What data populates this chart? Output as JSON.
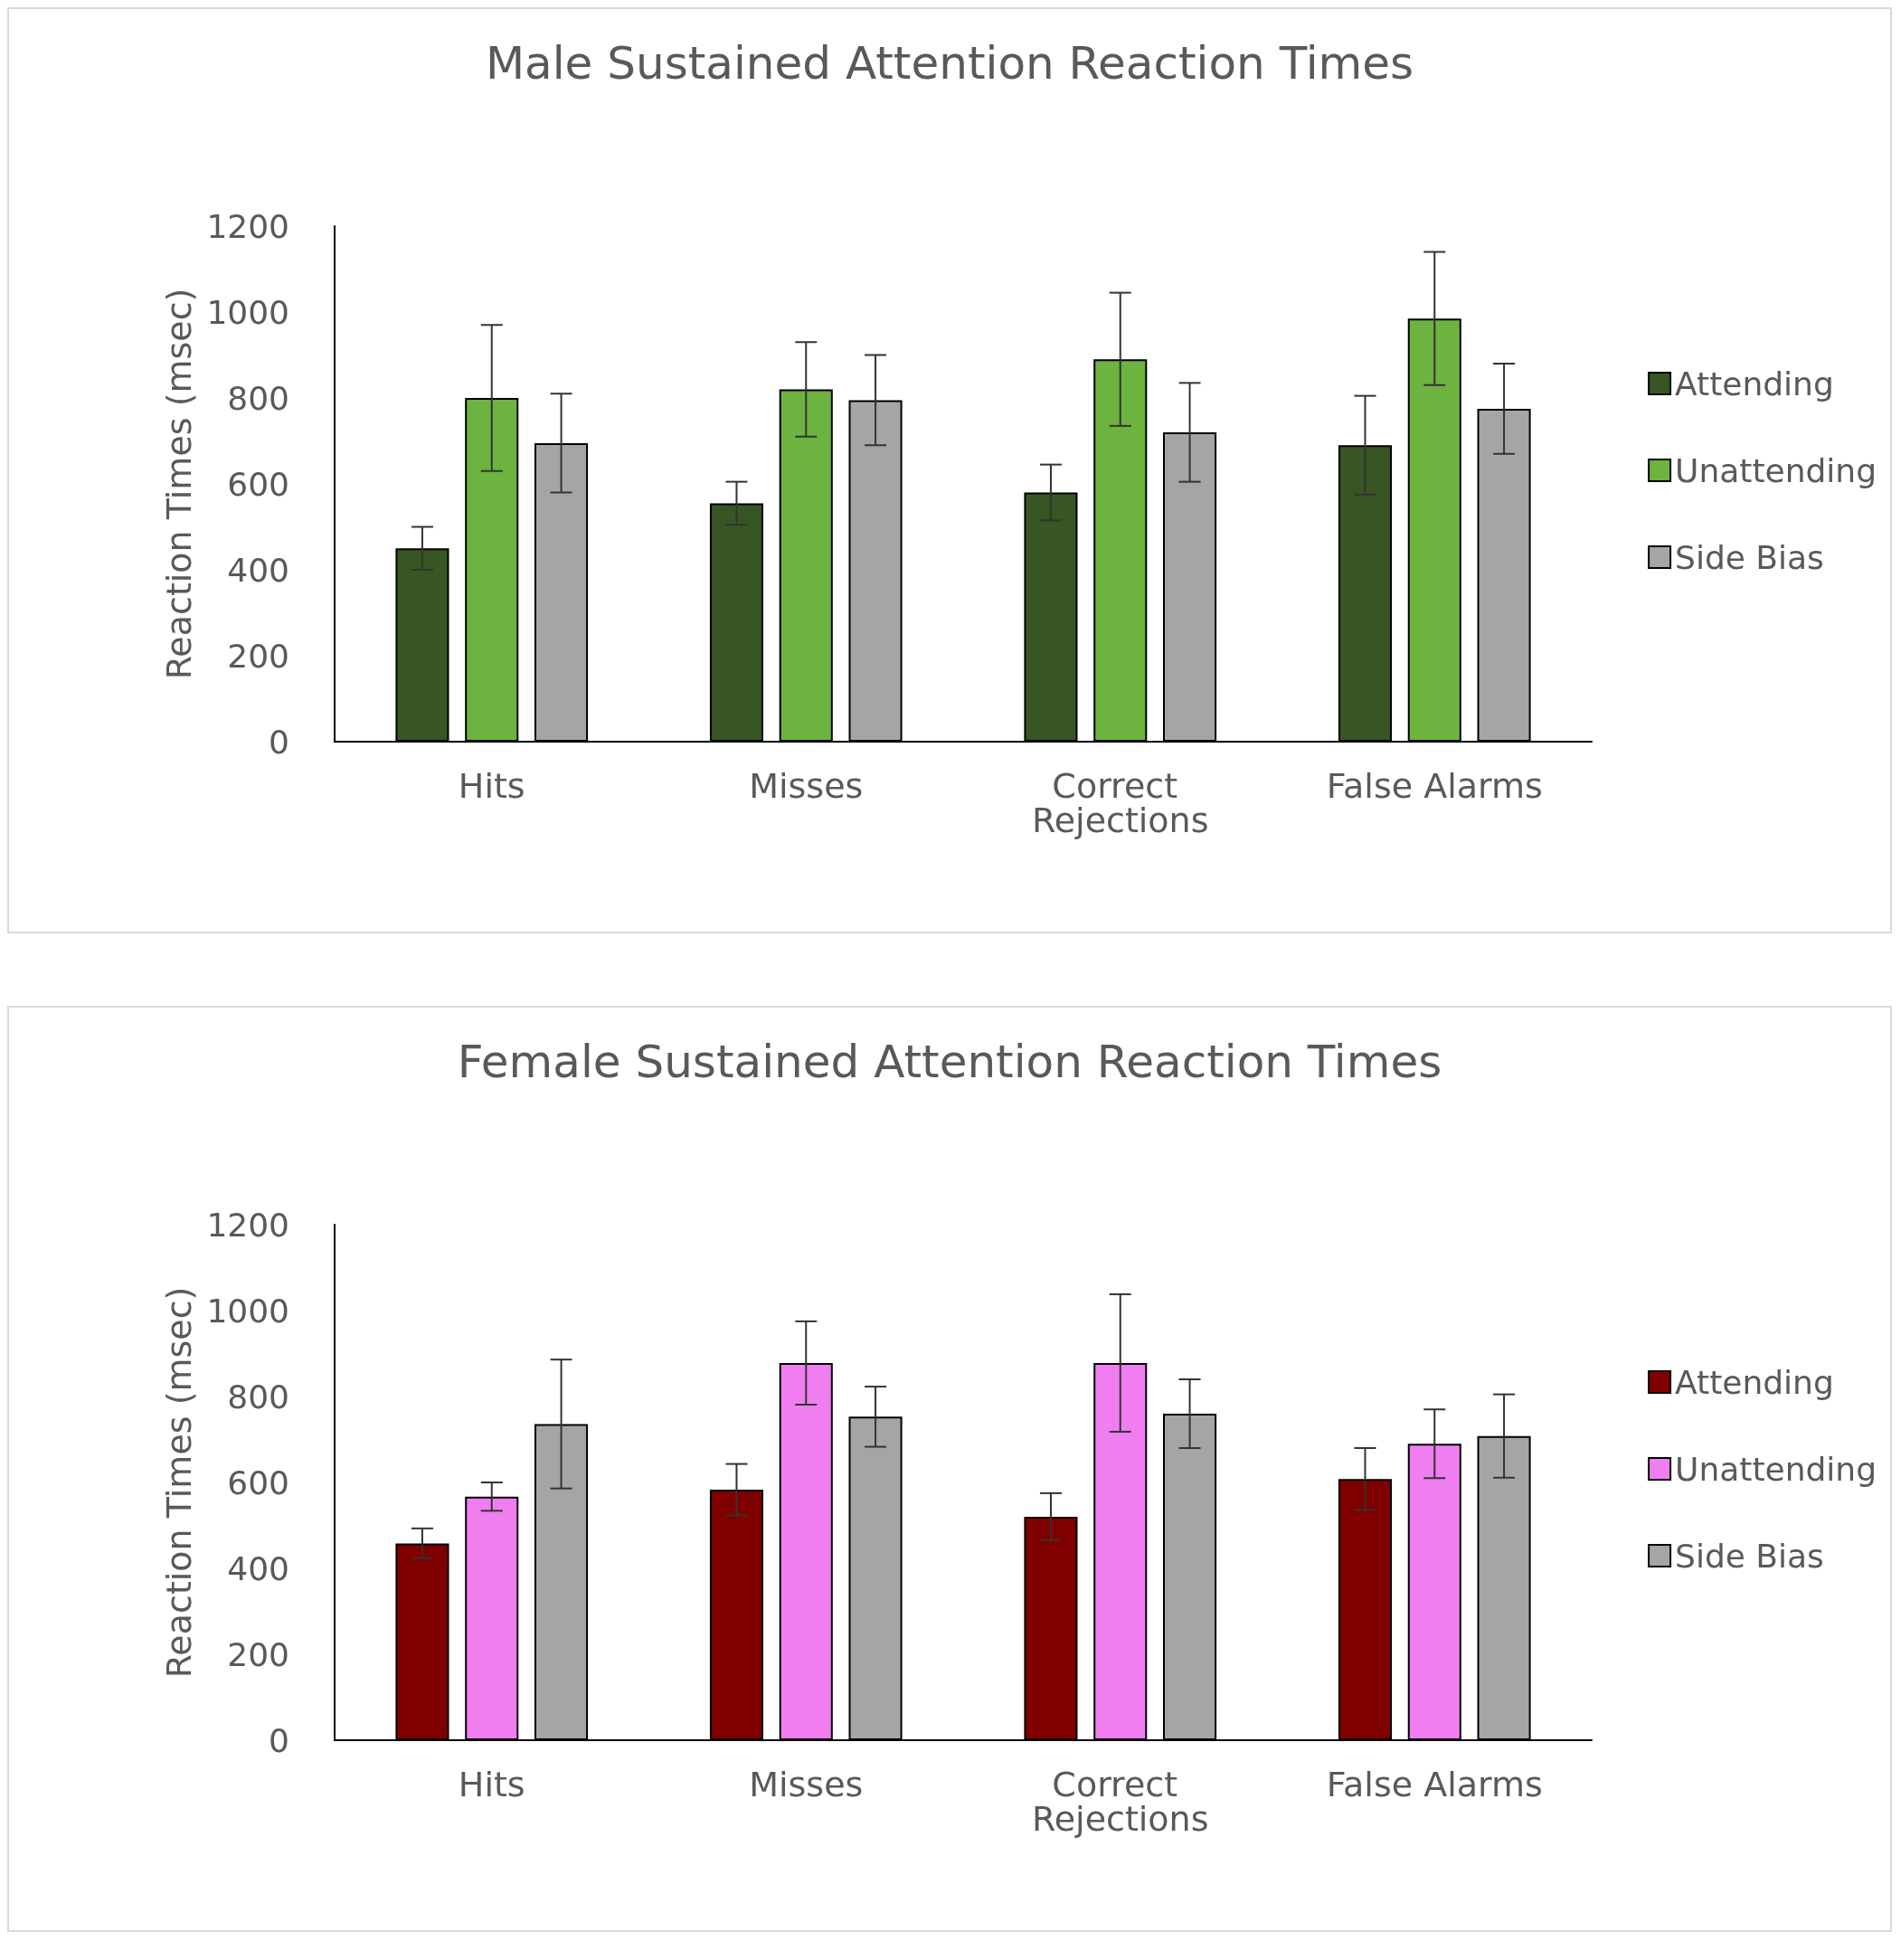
{
  "chart_data": [
    {
      "type": "bar",
      "title": "Male Sustained Attention Reaction Times",
      "ylabel": "Reaction Times (msec)",
      "categories": [
        "Hits",
        "Misses",
        "Correct Rejections",
        "False Alarms"
      ],
      "ylim": [
        0,
        1200
      ],
      "yticks": [
        0,
        200,
        400,
        600,
        800,
        1000,
        1200
      ],
      "grid": false,
      "legend": "right",
      "series": [
        {
          "name": "Attending",
          "color": "#375623",
          "values": [
            450,
            555,
            580,
            690
          ],
          "errors": [
            50,
            50,
            65,
            115
          ]
        },
        {
          "name": "Unattending",
          "color": "#6db33f",
          "values": [
            800,
            820,
            890,
            985
          ],
          "errors": [
            170,
            110,
            155,
            155
          ]
        },
        {
          "name": "Side Bias",
          "color": "#a5a5a5",
          "values": [
            695,
            795,
            720,
            775
          ],
          "errors": [
            115,
            105,
            115,
            105
          ]
        }
      ]
    },
    {
      "type": "bar",
      "title": "Female Sustained Attention Reaction Times",
      "ylabel": "Reaction Times (msec)",
      "categories": [
        "Hits",
        "Misses",
        "Correct Rejections",
        "False Alarms"
      ],
      "ylim": [
        0,
        1200
      ],
      "yticks": [
        0,
        200,
        400,
        600,
        800,
        1000,
        1200
      ],
      "grid": false,
      "legend": "right",
      "series": [
        {
          "name": "Attending",
          "color": "#800000",
          "values": [
            458,
            583,
            520,
            608
          ],
          "errors": [
            35,
            60,
            55,
            72
          ]
        },
        {
          "name": "Unattending",
          "color": "#f07ef0",
          "values": [
            567,
            878,
            878,
            690
          ],
          "errors": [
            33,
            97,
            160,
            80
          ]
        },
        {
          "name": "Side Bias",
          "color": "#a5a5a5",
          "values": [
            736,
            753,
            760,
            708
          ],
          "errors": [
            150,
            70,
            80,
            97
          ]
        }
      ]
    }
  ]
}
